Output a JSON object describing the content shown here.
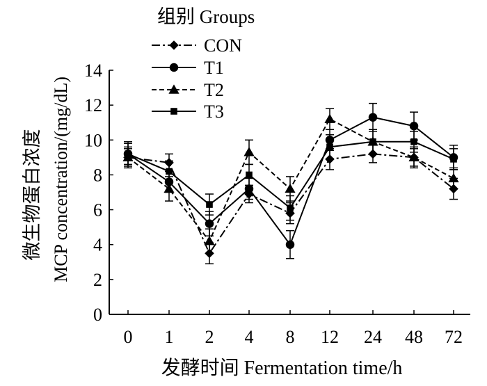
{
  "chart_data": {
    "type": "line",
    "title": "",
    "xlabel": "发酵时间 Fermentation time/h",
    "ylabel_cn": "微生物蛋白浓度",
    "ylabel_en": "MCP concentration/(mg/dL)",
    "categories": [
      "0",
      "1",
      "2",
      "4",
      "8",
      "12",
      "24",
      "48",
      "72"
    ],
    "ylim": [
      0,
      14
    ],
    "yticks": [
      "0",
      "2",
      "4",
      "6",
      "8",
      "10",
      "12",
      "14"
    ],
    "grid": false,
    "legend": {
      "title": "组别 Groups",
      "placement": "top-left"
    },
    "series": [
      {
        "name": "CON",
        "marker": "diamond",
        "dash": "dashdot",
        "values": [
          9.0,
          8.7,
          3.5,
          6.9,
          5.8,
          8.9,
          9.2,
          9.0,
          7.2
        ],
        "errors": [
          0.5,
          0.5,
          0.6,
          0.5,
          0.6,
          0.6,
          0.5,
          0.5,
          0.6
        ]
      },
      {
        "name": "T1",
        "marker": "circle",
        "dash": "solid",
        "values": [
          9.2,
          7.6,
          5.2,
          7.2,
          4.0,
          10.0,
          11.3,
          10.8,
          9.0
        ],
        "errors": [
          0.7,
          0.6,
          0.7,
          0.6,
          0.8,
          0.6,
          0.8,
          0.8,
          0.7
        ]
      },
      {
        "name": "T2",
        "marker": "triangle",
        "dash": "dashed",
        "values": [
          9.0,
          7.2,
          4.2,
          9.3,
          7.2,
          11.2,
          9.9,
          9.0,
          7.8
        ],
        "errors": [
          0.6,
          0.7,
          0.7,
          0.7,
          0.7,
          0.6,
          0.7,
          0.6,
          0.6
        ]
      },
      {
        "name": "T3",
        "marker": "square",
        "dash": "solid",
        "values": [
          9.2,
          8.2,
          6.3,
          8.0,
          6.1,
          9.6,
          9.9,
          9.9,
          8.9
        ],
        "errors": [
          0.6,
          0.6,
          0.6,
          0.6,
          0.7,
          0.7,
          0.7,
          0.6,
          0.6
        ]
      }
    ]
  }
}
